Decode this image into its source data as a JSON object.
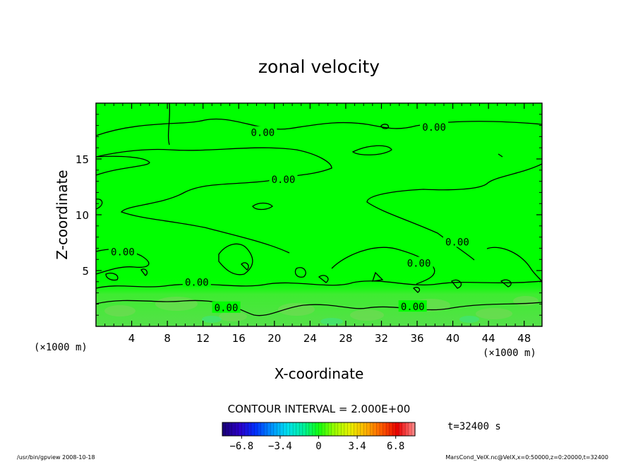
{
  "chart_data": {
    "type": "heatmap",
    "title": "zonal velocity",
    "xlabel": "X-coordinate",
    "ylabel": "Z-coordinate",
    "x_unit_left": "(×1000 m)",
    "x_unit_right": "(×1000 m)",
    "xlim": [
      0,
      50
    ],
    "ylim": [
      0,
      20
    ],
    "x_ticks": [
      4,
      8,
      12,
      16,
      20,
      24,
      28,
      32,
      36,
      40,
      44,
      48
    ],
    "x_tick_labels": [
      "4",
      "8",
      "12",
      "16",
      "20",
      "24",
      "28",
      "32",
      "36",
      "40",
      "44",
      "48"
    ],
    "y_ticks": [
      5,
      10,
      15
    ],
    "y_tick_labels": [
      "5",
      "10",
      "15"
    ],
    "contour_labels": [
      {
        "text": "0.00",
        "x": 18.7,
        "z": 17.3
      },
      {
        "text": "0.00",
        "x": 37.9,
        "z": 17.8
      },
      {
        "text": "0.00",
        "x": 21.0,
        "z": 13.1
      },
      {
        "text": "0.00",
        "x": 40.5,
        "z": 7.5
      },
      {
        "text": "0.00",
        "x": 3.0,
        "z": 6.6
      },
      {
        "text": "0.00",
        "x": 36.2,
        "z": 5.6
      },
      {
        "text": "0.00",
        "x": 11.3,
        "z": 3.9
      },
      {
        "text": "0.00",
        "x": 14.6,
        "z": 1.6
      },
      {
        "text": "0.00",
        "x": 35.5,
        "z": 1.7
      }
    ],
    "contour_interval_text": "CONTOUR INTERVAL = 2.000E+00",
    "time_text": "t=32400 s",
    "colorbar": {
      "min": -8.5,
      "max": 8.5,
      "tick_values": [
        -6.8,
        -3.4,
        0,
        3.4,
        6.8
      ],
      "tick_labels": [
        "−6.8",
        "−3.4",
        "0",
        "3.4",
        "6.8"
      ],
      "colors": [
        "#1a007a",
        "#2b00c8",
        "#0030ff",
        "#0090ff",
        "#00e0f0",
        "#00f0a0",
        "#10ff10",
        "#9aff00",
        "#e8f000",
        "#ffb000",
        "#ff5a00",
        "#e80000",
        "#ff8080"
      ]
    },
    "field_color": "#00ff00",
    "grid": false
  },
  "footer": {
    "left": "/usr/bin/gpview   2008-10-18",
    "right": "MarsCond_VelX.nc@VelX,x=0:50000,z=0:20000,t=32400"
  }
}
